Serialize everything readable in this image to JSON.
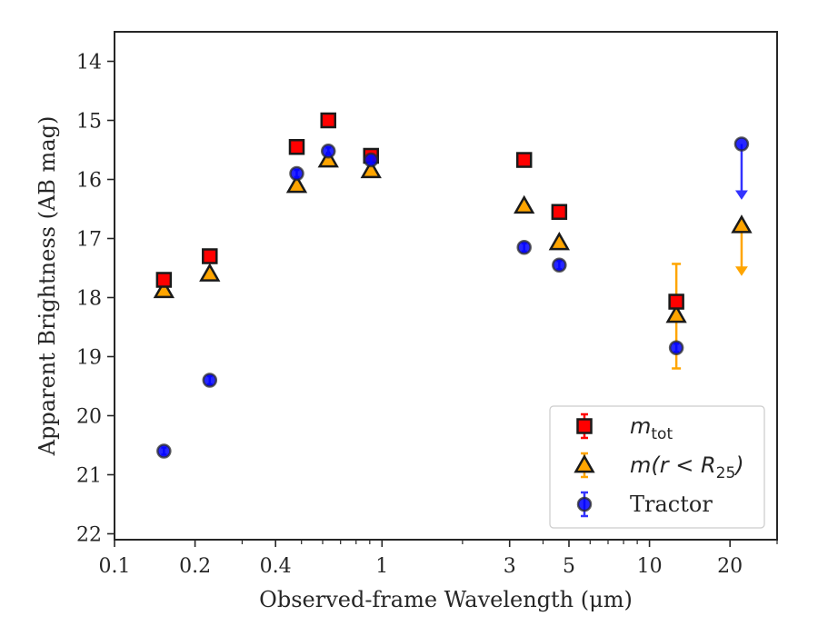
{
  "chart_data": {
    "type": "scatter",
    "xscale": "log",
    "yinverted": true,
    "xlabel": "Observed-frame Wavelength (μm)",
    "ylabel": "Apparent Brightness (AB mag)",
    "xlim": [
      0.1,
      30
    ],
    "ylim": [
      22.1,
      13.5
    ],
    "xticks": [
      {
        "v": 0.1,
        "label": "0.1"
      },
      {
        "v": 0.2,
        "label": "0.2"
      },
      {
        "v": 0.4,
        "label": "0.4"
      },
      {
        "v": 1,
        "label": "1"
      },
      {
        "v": 3,
        "label": "3"
      },
      {
        "v": 5,
        "label": "5"
      },
      {
        "v": 10,
        "label": "10"
      },
      {
        "v": 20,
        "label": "20"
      }
    ],
    "yticks": [
      {
        "v": 14,
        "label": "14"
      },
      {
        "v": 15,
        "label": "15"
      },
      {
        "v": 16,
        "label": "16"
      },
      {
        "v": 17,
        "label": "17"
      },
      {
        "v": 18,
        "label": "18"
      },
      {
        "v": 19,
        "label": "19"
      },
      {
        "v": 20,
        "label": "20"
      },
      {
        "v": 21,
        "label": "21"
      },
      {
        "v": 22,
        "label": "22"
      }
    ],
    "grid": false,
    "legend_position": "bottom-right",
    "series": [
      {
        "key": "mtot",
        "name": "m_tot",
        "legend_main": "m",
        "legend_sub": "tot",
        "marker": "square",
        "color": "#ff0000",
        "edge": "#1a1a1a",
        "errcolor": "#ff0000",
        "points": [
          {
            "x": 0.153,
            "y": 17.7,
            "err": 0.05
          },
          {
            "x": 0.227,
            "y": 17.3,
            "err": 0.05
          },
          {
            "x": 0.48,
            "y": 15.45,
            "err": 0.03
          },
          {
            "x": 0.63,
            "y": 15.0,
            "err": 0.03
          },
          {
            "x": 0.91,
            "y": 15.6,
            "err": 0.03
          },
          {
            "x": 3.4,
            "y": 15.67,
            "err": 0.03
          },
          {
            "x": 4.6,
            "y": 16.55,
            "err": 0.03
          },
          {
            "x": 12.6,
            "y": 18.07,
            "err": 0.05
          }
        ]
      },
      {
        "key": "mr25",
        "name": "m(r < R_25)",
        "legend_main": "m(r < R",
        "legend_sub": "25",
        "legend_tail": ")",
        "marker": "triangle",
        "color": "#ffa500",
        "edge": "#1a1a1a",
        "errcolor": "#ffa500",
        "points": [
          {
            "x": 0.153,
            "y": 17.88,
            "err": 0.05
          },
          {
            "x": 0.227,
            "y": 17.6,
            "err": 0.05
          },
          {
            "x": 0.48,
            "y": 16.1,
            "err": 0.03
          },
          {
            "x": 0.63,
            "y": 15.67,
            "err": 0.03
          },
          {
            "x": 0.91,
            "y": 15.85,
            "err": 0.03
          },
          {
            "x": 3.4,
            "y": 16.45,
            "err": 0.03
          },
          {
            "x": 4.6,
            "y": 17.07,
            "err": 0.03
          },
          {
            "x": 12.6,
            "y": 18.3,
            "err_lo": 0.87,
            "err_hi": 0.9
          },
          {
            "x": 22.1,
            "y": 16.78,
            "upper_limit": true,
            "arrow_to": 17.62
          }
        ]
      },
      {
        "key": "tractor",
        "name": "Tractor",
        "legend_main": "Tractor",
        "marker": "circle",
        "color": "#0000ff",
        "edge": "#2a2a2a",
        "errcolor": "#3333ff",
        "points": [
          {
            "x": 0.153,
            "y": 20.6,
            "err": 0.06
          },
          {
            "x": 0.227,
            "y": 19.4,
            "err": 0.07
          },
          {
            "x": 0.48,
            "y": 15.9,
            "err": 0.06
          },
          {
            "x": 0.63,
            "y": 15.52,
            "err": 0.06
          },
          {
            "x": 0.91,
            "y": 15.67,
            "err": 0.06
          },
          {
            "x": 3.4,
            "y": 17.15,
            "err": 0.07
          },
          {
            "x": 4.6,
            "y": 17.45,
            "err": 0.07
          },
          {
            "x": 12.6,
            "y": 18.85,
            "err": 0.07
          },
          {
            "x": 22.1,
            "y": 15.4,
            "upper_limit": true,
            "arrow_to": 16.33
          }
        ]
      }
    ]
  }
}
